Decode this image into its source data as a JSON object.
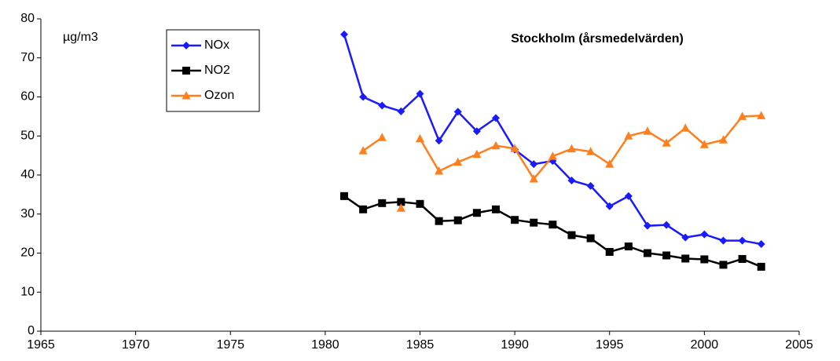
{
  "chart_data": {
    "type": "line",
    "title": "Stockholm (årsmedelvärden)",
    "y_label": "µg/m3",
    "x": [
      1981,
      1982,
      1983,
      1984,
      1985,
      1986,
      1987,
      1988,
      1989,
      1990,
      1991,
      1992,
      1993,
      1994,
      1995,
      1996,
      1997,
      1998,
      1999,
      2000,
      2001,
      2002,
      2003
    ],
    "series": [
      {
        "name": "NOx",
        "color": "#1a1aff",
        "marker": "diamond",
        "values": [
          76,
          60,
          57.8,
          56.3,
          60.8,
          48.8,
          56.2,
          51.2,
          54.6,
          46.5,
          42.8,
          43.6,
          38.6,
          37.2,
          32,
          34.6,
          27,
          27.2,
          24,
          24.8,
          23.2,
          23.2,
          22.3
        ]
      },
      {
        "name": "NO2",
        "color": "#000000",
        "marker": "square",
        "values": [
          34.6,
          31.2,
          32.8,
          33.1,
          32.6,
          28.2,
          28.4,
          30.3,
          31.2,
          28.5,
          27.8,
          27.3,
          24.6,
          23.8,
          20.3,
          21.7,
          20,
          19.4,
          18.6,
          18.4,
          17,
          18.5,
          16.5
        ]
      },
      {
        "name": "Ozon",
        "color": "#ff7f1e",
        "marker": "triangle",
        "x": [
          1982,
          1983,
          1984,
          1984,
          1984,
          1985,
          1986,
          1987,
          1988,
          1989,
          1990,
          1991,
          1992,
          1993,
          1994,
          1995,
          1996,
          1997,
          1998,
          1999,
          2000,
          2001,
          2002,
          2003
        ],
        "values": [
          46.2,
          49.6,
          null,
          31.5,
          null,
          49.3,
          41,
          43.3,
          45.3,
          47.5,
          46.8,
          39,
          44.8,
          46.7,
          46,
          42.8,
          50,
          51.2,
          48.2,
          52,
          47.8,
          49,
          55,
          55.2
        ]
      }
    ],
    "xlim": [
      1965,
      2005
    ],
    "xticks": [
      1965,
      1970,
      1975,
      1980,
      1985,
      1990,
      1995,
      2000,
      2005
    ],
    "ylim": [
      0,
      80
    ],
    "yticks": [
      0,
      10,
      20,
      30,
      40,
      50,
      60,
      70,
      80
    ],
    "grid": false
  }
}
